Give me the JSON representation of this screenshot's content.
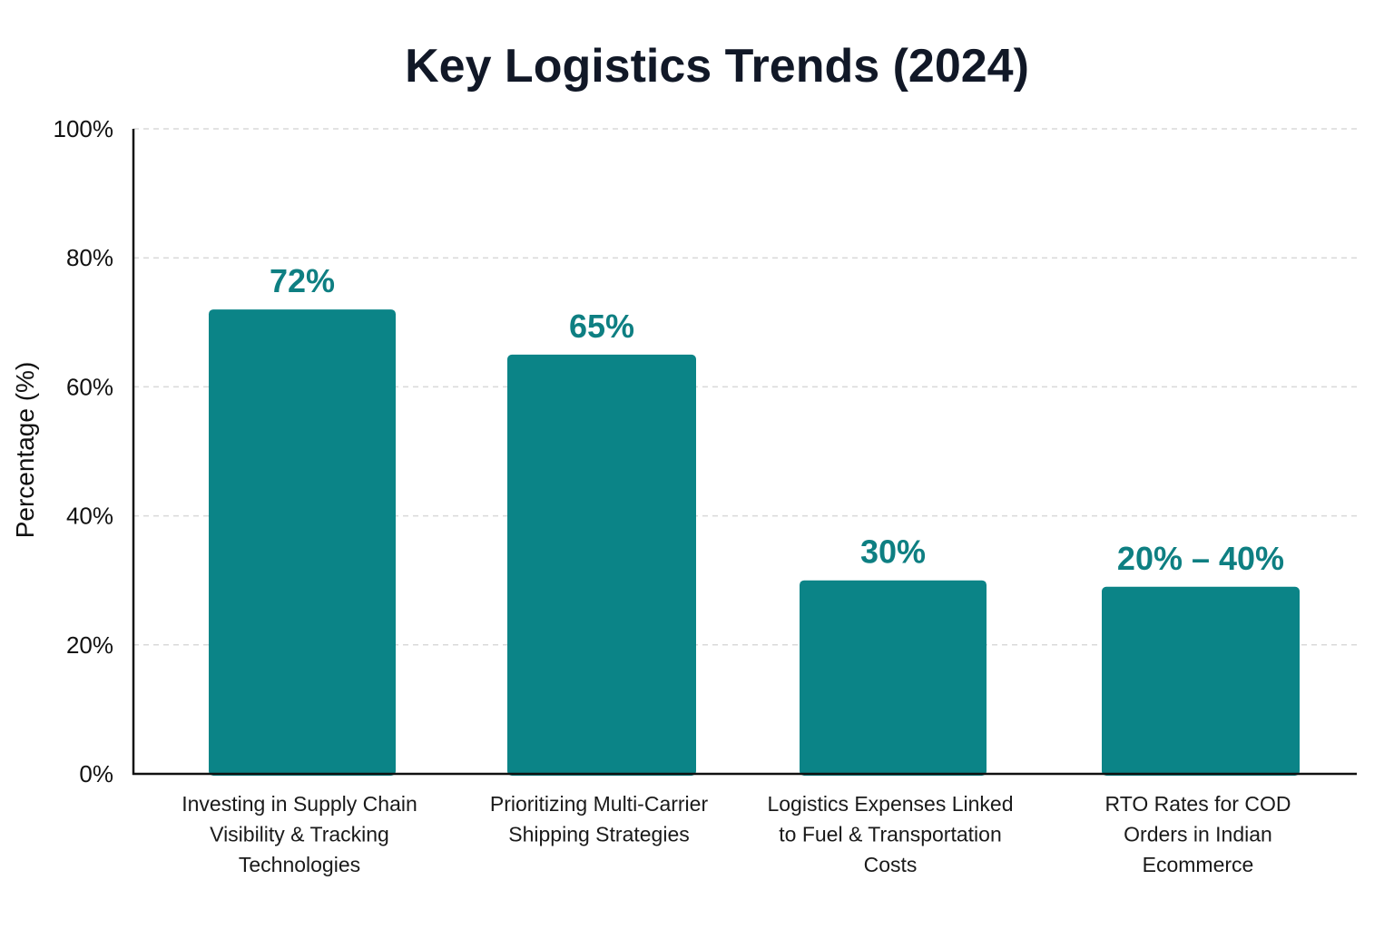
{
  "chart_data": {
    "type": "bar",
    "title": "Key Logistics Trends (2024)",
    "ylabel": "Percentage (%)",
    "xlabel": "",
    "ylim": [
      0,
      100
    ],
    "yticks": [
      0,
      20,
      40,
      60,
      80,
      100
    ],
    "ytick_labels": [
      "0%",
      "20%",
      "40%",
      "60%",
      "80%",
      "100%"
    ],
    "grid": true,
    "bar_color": "#0b8487",
    "label_color": "#0e7f82",
    "categories": [
      "Investing in Supply Chain Visibility & Tracking Technologies",
      "Prioritizing Multi-Carrier Shipping Strategies",
      "Logistics Expenses Linked to Fuel & Transportation Costs",
      "RTO Rates for COD Orders in Indian Ecommerce"
    ],
    "category_lines": [
      [
        "Investing in Supply Chain",
        "Visibility & Tracking",
        "Technologies"
      ],
      [
        "Prioritizing Multi-Carrier",
        "Shipping Strategies"
      ],
      [
        "Logistics Expenses Linked",
        "to Fuel & Transportation",
        "Costs"
      ],
      [
        "RTO Rates for COD",
        "Orders in Indian",
        "Ecommerce"
      ]
    ],
    "values": [
      72,
      65,
      30,
      29
    ],
    "value_labels": [
      "72%",
      "65%",
      "30%",
      "20% – 40%"
    ]
  }
}
